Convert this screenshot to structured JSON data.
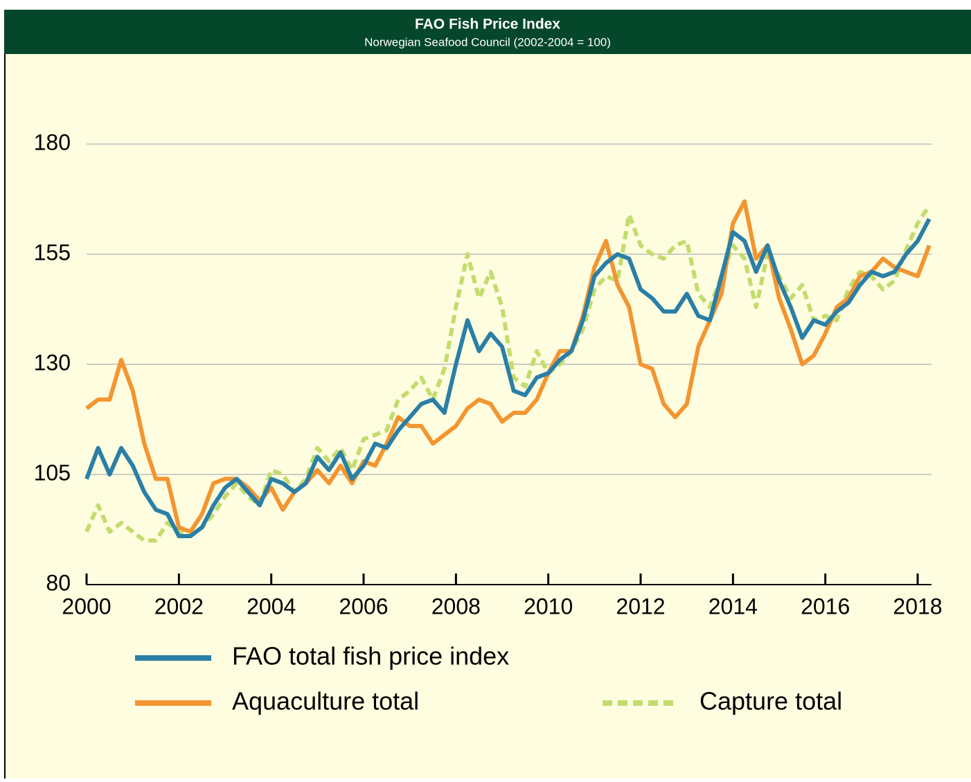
{
  "chart_data": {
    "type": "line",
    "title": "FAO Fish Price Index",
    "subtitle": "Norwegian Seafood Council (2002-2004 = 100)",
    "x": [
      2000,
      2000.25,
      2000.5,
      2000.75,
      2001,
      2001.25,
      2001.5,
      2001.75,
      2002,
      2002.25,
      2002.5,
      2002.75,
      2003,
      2003.25,
      2003.5,
      2003.75,
      2004,
      2004.25,
      2004.5,
      2004.75,
      2005,
      2005.25,
      2005.5,
      2005.75,
      2006,
      2006.25,
      2006.5,
      2006.75,
      2007,
      2007.25,
      2007.5,
      2007.75,
      2008,
      2008.25,
      2008.5,
      2008.75,
      2009,
      2009.25,
      2009.5,
      2009.75,
      2010,
      2010.25,
      2010.5,
      2010.75,
      2011,
      2011.25,
      2011.5,
      2011.75,
      2012,
      2012.25,
      2012.5,
      2012.75,
      2013,
      2013.25,
      2013.5,
      2013.75,
      2014,
      2014.25,
      2014.5,
      2014.75,
      2015,
      2015.25,
      2015.5,
      2015.75,
      2016,
      2016.25,
      2016.5,
      2016.75,
      2017,
      2017.25,
      2017.5,
      2017.75,
      2018,
      2018.25
    ],
    "series": [
      {
        "name": "FAO total fish price index",
        "color": "#2a7fa6",
        "dash": false,
        "values": [
          104,
          111,
          105,
          111,
          107,
          101,
          97,
          96,
          91,
          91,
          93,
          98,
          102,
          104,
          101,
          98,
          104,
          103,
          101,
          103,
          109,
          106,
          110,
          104,
          107,
          112,
          111,
          115,
          118,
          121,
          122,
          119,
          130,
          140,
          133,
          137,
          134,
          124,
          123,
          127,
          128,
          131,
          133,
          140,
          150,
          153,
          155,
          154,
          147,
          145,
          142,
          142,
          146,
          141,
          140,
          150,
          160,
          158,
          151,
          157,
          149,
          143,
          136,
          140,
          139,
          142,
          144,
          148,
          151,
          150,
          151,
          155,
          158,
          163
        ]
      },
      {
        "name": "Aquaculture total",
        "color": "#f39530",
        "dash": false,
        "values": [
          120,
          122,
          122,
          131,
          124,
          112,
          104,
          104,
          93,
          92,
          96,
          103,
          104,
          104,
          102,
          99,
          102,
          97,
          101,
          103,
          106,
          103,
          107,
          103,
          108,
          107,
          112,
          118,
          116,
          116,
          112,
          114,
          116,
          120,
          122,
          121,
          117,
          119,
          119,
          122,
          128,
          133,
          133,
          141,
          152,
          158,
          148,
          143,
          130,
          129,
          121,
          118,
          121,
          134,
          140,
          146,
          162,
          167,
          154,
          157,
          145,
          138,
          130,
          132,
          137,
          143,
          145,
          150,
          151,
          154,
          152,
          151,
          150,
          157
        ]
      },
      {
        "name": "Capture total",
        "color": "#c3dc6e",
        "dash": true,
        "values": [
          92,
          98,
          92,
          94,
          92,
          90,
          90,
          94,
          92,
          91,
          93,
          96,
          100,
          103,
          100,
          98,
          106,
          105,
          101,
          104,
          111,
          108,
          111,
          106,
          113,
          114,
          115,
          122,
          124,
          127,
          122,
          129,
          143,
          155,
          145,
          151,
          143,
          127,
          125,
          133,
          128,
          130,
          133,
          138,
          147,
          150,
          149,
          164,
          157,
          155,
          154,
          157,
          158,
          146,
          143,
          150,
          157,
          154,
          143,
          155,
          150,
          145,
          148,
          140,
          141,
          140,
          147,
          151,
          150,
          147,
          149,
          156,
          162,
          166
        ]
      }
    ],
    "xlim": [
      2000,
      2018.3
    ],
    "xticks": [
      2000,
      2002,
      2004,
      2006,
      2008,
      2010,
      2012,
      2014,
      2016,
      2018
    ],
    "ylim": [
      80,
      180
    ],
    "yticks": [
      80,
      105,
      130,
      155,
      180
    ],
    "grid": true
  }
}
